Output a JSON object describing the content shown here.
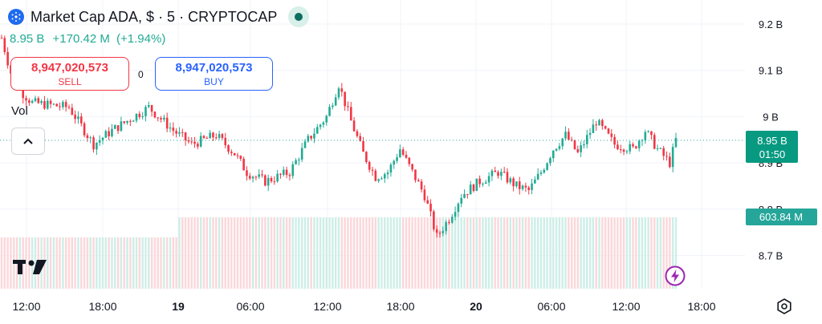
{
  "header": {
    "title": "Market Cap ADA, $ · 5 · CRYPTOCAP",
    "price": "8.95 B",
    "change": "+170.42 M",
    "change_pct": "(+1.94%)"
  },
  "trade": {
    "sell_price": "8,947,020,573",
    "sell_label": "SELL",
    "spread": "0",
    "buy_price": "8,947,020,573",
    "buy_label": "BUY"
  },
  "volume_label": "Vol",
  "colors": {
    "up": "#22ab94",
    "down": "#f23645",
    "accent": "#2962ff",
    "badge": "#089981"
  },
  "icons": {
    "coin": "cardano-icon",
    "collapse": "chevron-up-icon",
    "logo": "tradingview-logo",
    "bolt": "lightning-icon",
    "settings": "gear-icon"
  },
  "chart_data": {
    "type": "candlestick",
    "x_ticks": [
      "12:00",
      "18:00",
      "19",
      "06:00",
      "12:00",
      "18:00",
      "20",
      "06:00",
      "12:00",
      "18:00"
    ],
    "y_ticks": [
      "9.2 B",
      "9.1 B",
      "9 B",
      "8.9 B",
      "8.8 B",
      "8.7 B"
    ],
    "ylim": [
      8.65,
      9.24
    ],
    "last_price_label": "8.95 B",
    "countdown": "01:50",
    "volume_label": "603.84 M",
    "price_path": [
      {
        "t": 0,
        "v": 9.17
      },
      {
        "t": 4,
        "v": 9.07
      },
      {
        "t": 10,
        "v": 9.03
      },
      {
        "t": 22,
        "v": 9.02
      },
      {
        "t": 30,
        "v": 8.94
      },
      {
        "t": 36,
        "v": 8.97
      },
      {
        "t": 48,
        "v": 9.02
      },
      {
        "t": 56,
        "v": 8.97
      },
      {
        "t": 62,
        "v": 8.94
      },
      {
        "t": 70,
        "v": 8.96
      },
      {
        "t": 76,
        "v": 8.92
      },
      {
        "t": 80,
        "v": 8.88
      },
      {
        "t": 86,
        "v": 8.86
      },
      {
        "t": 94,
        "v": 8.88
      },
      {
        "t": 100,
        "v": 8.95
      },
      {
        "t": 106,
        "v": 9.0
      },
      {
        "t": 110,
        "v": 9.07
      },
      {
        "t": 114,
        "v": 8.99
      },
      {
        "t": 118,
        "v": 8.92
      },
      {
        "t": 122,
        "v": 8.87
      },
      {
        "t": 126,
        "v": 8.88
      },
      {
        "t": 130,
        "v": 8.93
      },
      {
        "t": 134,
        "v": 8.88
      },
      {
        "t": 138,
        "v": 8.83
      },
      {
        "t": 142,
        "v": 8.74
      },
      {
        "t": 146,
        "v": 8.78
      },
      {
        "t": 150,
        "v": 8.83
      },
      {
        "t": 156,
        "v": 8.86
      },
      {
        "t": 162,
        "v": 8.88
      },
      {
        "t": 168,
        "v": 8.85
      },
      {
        "t": 172,
        "v": 8.84
      },
      {
        "t": 176,
        "v": 8.88
      },
      {
        "t": 180,
        "v": 8.93
      },
      {
        "t": 184,
        "v": 8.96
      },
      {
        "t": 188,
        "v": 8.92
      },
      {
        "t": 194,
        "v": 8.99
      },
      {
        "t": 200,
        "v": 8.94
      },
      {
        "t": 206,
        "v": 8.93
      },
      {
        "t": 210,
        "v": 8.97
      },
      {
        "t": 214,
        "v": 8.93
      },
      {
        "t": 218,
        "v": 8.9
      },
      {
        "t": 220,
        "v": 8.95
      }
    ]
  }
}
